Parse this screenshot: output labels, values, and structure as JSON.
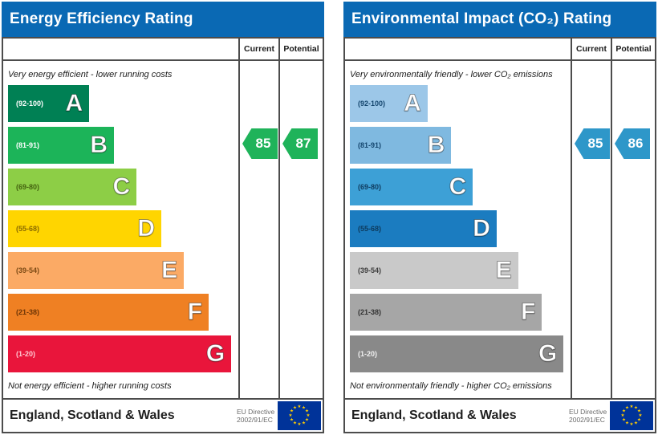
{
  "chart_data": [
    {
      "type": "bar",
      "title": "Energy Efficiency Rating",
      "header_color": "#0a69b4",
      "columns": {
        "current": "Current",
        "potential": "Potential"
      },
      "top_caption": "Very energy efficient - lower running costs",
      "bottom_caption": "Not energy efficient - higher running costs",
      "bands": [
        {
          "letter": "A",
          "range": "(92-100)",
          "color": "#008054",
          "width_pct": 36,
          "range_color": "#ffffff"
        },
        {
          "letter": "B",
          "range": "(81-91)",
          "color": "#1cb459",
          "width_pct": 47,
          "range_color": "#ffffff"
        },
        {
          "letter": "C",
          "range": "(69-80)",
          "color": "#8dce46",
          "width_pct": 57,
          "range_color": "#44620f"
        },
        {
          "letter": "D",
          "range": "(55-68)",
          "color": "#ffd500",
          "width_pct": 68,
          "range_color": "#8a6a00"
        },
        {
          "letter": "E",
          "range": "(39-54)",
          "color": "#fbaa65",
          "width_pct": 78,
          "range_color": "#7c4a14"
        },
        {
          "letter": "F",
          "range": "(21-38)",
          "color": "#ef8023",
          "width_pct": 89,
          "range_color": "#6d3506"
        },
        {
          "letter": "G",
          "range": "(1-20)",
          "color": "#e9153b",
          "width_pct": 99,
          "range_color": "#ffc9d2"
        }
      ],
      "current": {
        "value": "85",
        "color": "#1fb35a"
      },
      "potential": {
        "value": "87",
        "color": "#1fb35a"
      },
      "arrow_band_index": 1,
      "footer": {
        "region": "England, Scotland & Wales",
        "directive_line1": "EU Directive",
        "directive_line2": "2002/91/EC",
        "flag_bg": "#003399",
        "flag_star": "#ffcc00"
      }
    },
    {
      "type": "bar",
      "title": "Environmental Impact (CO₂) Rating",
      "header_color": "#0a69b4",
      "columns": {
        "current": "Current",
        "potential": "Potential"
      },
      "top_caption": "Very environmentally friendly - lower CO₂ emissions",
      "bottom_caption": "Not environmentally friendly - higher CO₂ emissions",
      "bands": [
        {
          "letter": "A",
          "range": "(92-100)",
          "color": "#9cc7e8",
          "width_pct": 36,
          "range_color": "#14466e"
        },
        {
          "letter": "B",
          "range": "(81-91)",
          "color": "#7fb9e0",
          "width_pct": 47,
          "range_color": "#14466e"
        },
        {
          "letter": "C",
          "range": "(69-80)",
          "color": "#3da0d6",
          "width_pct": 57,
          "range_color": "#103d61"
        },
        {
          "letter": "D",
          "range": "(55-68)",
          "color": "#1b7cc0",
          "width_pct": 68,
          "range_color": "#0d3a5c"
        },
        {
          "letter": "E",
          "range": "(39-54)",
          "color": "#c9c9c9",
          "width_pct": 78,
          "range_color": "#3d3d3d"
        },
        {
          "letter": "F",
          "range": "(21-38)",
          "color": "#a6a6a6",
          "width_pct": 89,
          "range_color": "#333333"
        },
        {
          "letter": "G",
          "range": "(1-20)",
          "color": "#898989",
          "width_pct": 99,
          "range_color": "#f0f0f0"
        }
      ],
      "current": {
        "value": "85",
        "color": "#2e97c9"
      },
      "potential": {
        "value": "86",
        "color": "#2e97c9"
      },
      "arrow_band_index": 1,
      "footer": {
        "region": "England, Scotland & Wales",
        "directive_line1": "EU Directive",
        "directive_line2": "2002/91/EC",
        "flag_bg": "#003399",
        "flag_star": "#ffcc00"
      }
    }
  ]
}
